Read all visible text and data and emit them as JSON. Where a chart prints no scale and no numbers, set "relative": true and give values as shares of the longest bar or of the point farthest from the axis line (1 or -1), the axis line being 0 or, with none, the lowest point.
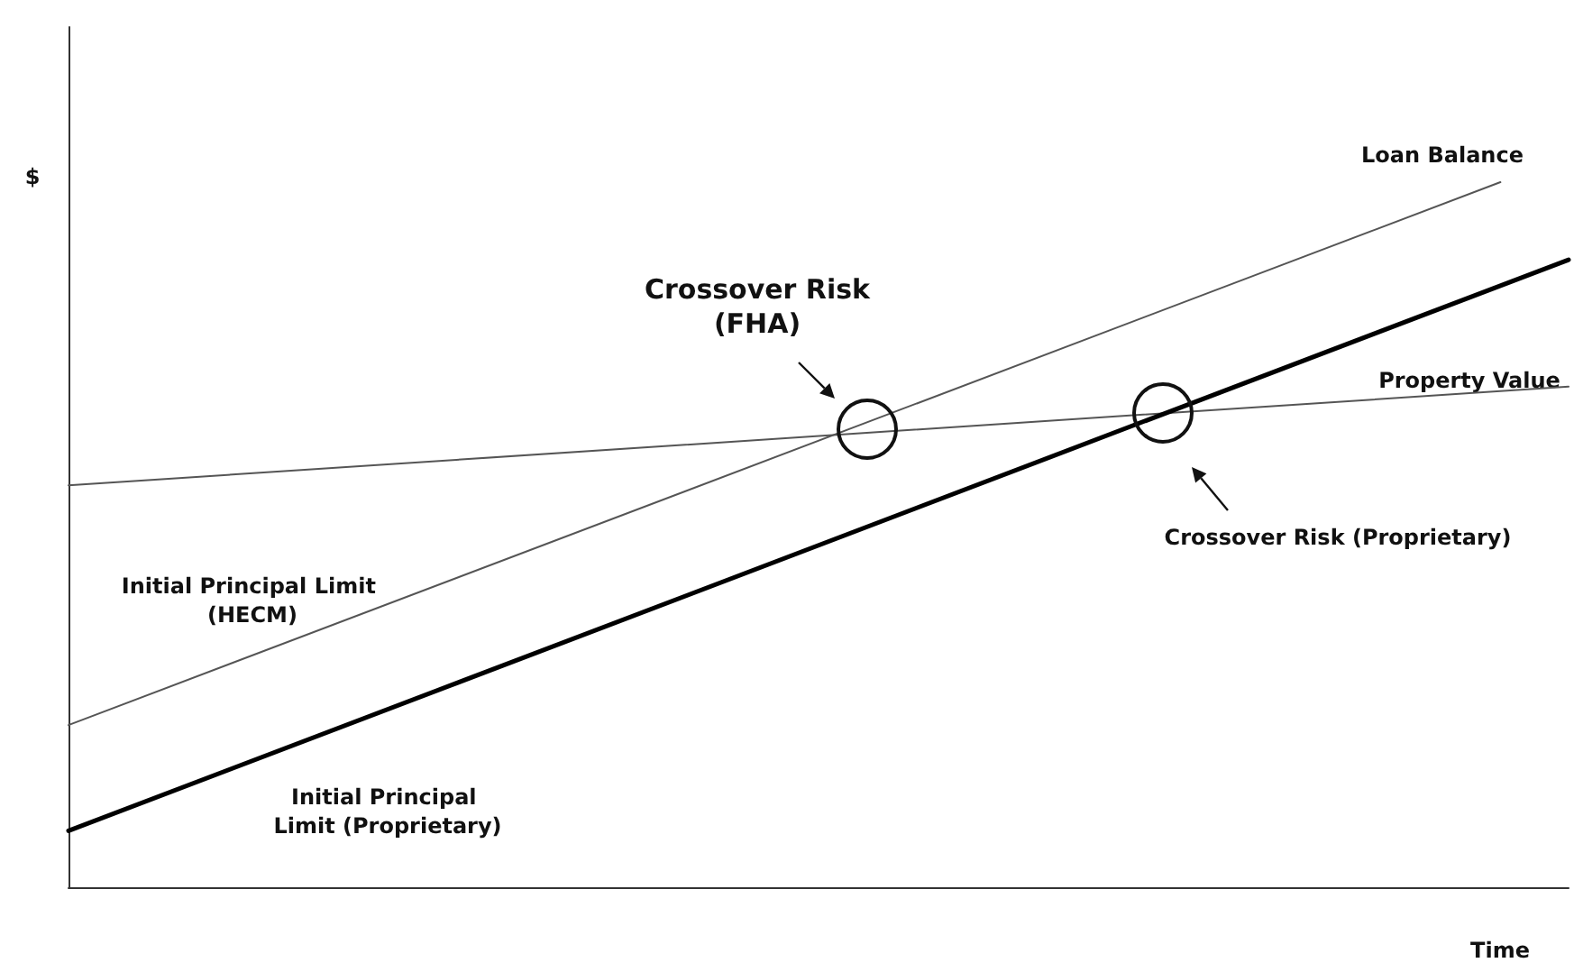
{
  "chart_data": {
    "type": "line",
    "relative": true,
    "xlabel": "Time",
    "ylabel": "$",
    "categories": [
      null,
      null,
      null,
      null,
      null,
      null,
      null,
      null,
      null,
      null,
      null,
      null,
      null,
      null,
      null,
      null,
      null,
      null,
      null,
      null,
      null,
      null,
      null
    ],
    "series": [
      {
        "name": "Property Value",
        "color": "#555555",
        "values": [
          0.57,
          null,
          null,
          null,
          null,
          null,
          null,
          null,
          null,
          null,
          null,
          null,
          null,
          null,
          null,
          null,
          null,
          null,
          null,
          null,
          null,
          null,
          0.71
        ]
      },
      {
        "name": "Loan Balance",
        "color": "#555555",
        "values": [
          0.23,
          null,
          null,
          null,
          null,
          null,
          null,
          null,
          null,
          null,
          null,
          null,
          null,
          null,
          null,
          null,
          null,
          null,
          null,
          null,
          null,
          1,
          null
        ]
      },
      {
        "name": "Initial Principal Limit (Proprietary)",
        "color": "#000000",
        "values": [
          0.08,
          null,
          null,
          null,
          null,
          null,
          null,
          null,
          null,
          null,
          null,
          null,
          null,
          null,
          null,
          null,
          null,
          null,
          null,
          null,
          null,
          null,
          0.89
        ]
      }
    ],
    "annotations": [
      "Crossover Risk\n(FHA)",
      "Crossover Risk (Proprietary)",
      "Initial Principal Limit (HECM)"
    ],
    "grid": false,
    "legend": false,
    "marker": "none",
    "line_style": "solid"
  }
}
